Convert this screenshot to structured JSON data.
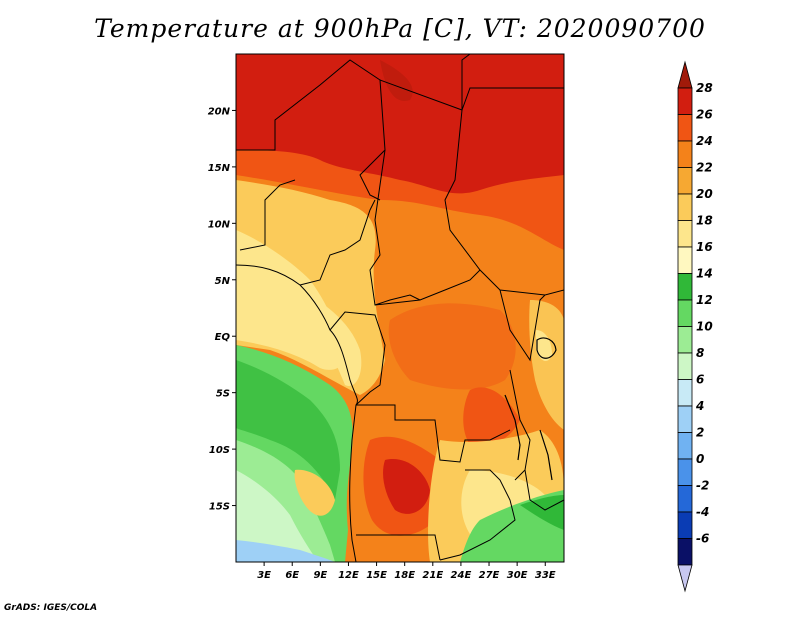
{
  "title": "Temperature at 900hPa [C], VT: 2020090700",
  "credit": "GrADS: IGES/COLA",
  "map": {
    "lon_range": [
      0,
      35
    ],
    "lat_range": [
      -20,
      25
    ],
    "lat_ticks": [
      {
        "value": 20,
        "label": "20N"
      },
      {
        "value": 15,
        "label": "15N"
      },
      {
        "value": 10,
        "label": "10N"
      },
      {
        "value": 5,
        "label": "5N"
      },
      {
        "value": 0,
        "label": "EQ"
      },
      {
        "value": -5,
        "label": "5S"
      },
      {
        "value": -10,
        "label": "10S"
      },
      {
        "value": -15,
        "label": "15S"
      }
    ],
    "lon_ticks": [
      {
        "value": 3,
        "label": "3E"
      },
      {
        "value": 6,
        "label": "6E"
      },
      {
        "value": 9,
        "label": "9E"
      },
      {
        "value": 12,
        "label": "12E"
      },
      {
        "value": 15,
        "label": "15E"
      },
      {
        "value": 18,
        "label": "18E"
      },
      {
        "value": 21,
        "label": "21E"
      },
      {
        "value": 24,
        "label": "24E"
      },
      {
        "value": 27,
        "label": "27E"
      },
      {
        "value": 30,
        "label": "30E"
      },
      {
        "value": 33,
        "label": "33E"
      }
    ]
  },
  "colorbar": {
    "levels": [
      "28",
      "26",
      "24",
      "22",
      "20",
      "18",
      "16",
      "14",
      "12",
      "10",
      "8",
      "6",
      "4",
      "2",
      "0",
      "-2",
      "-4",
      "-6"
    ],
    "colors": [
      "#a01a0a",
      "#d21e10",
      "#f05514",
      "#f4821a",
      "#f6a832",
      "#fbcb5a",
      "#fde68c",
      "#fff8c0",
      "#30b838",
      "#64d862",
      "#9cec94",
      "#cdf7c6",
      "#c8eaf6",
      "#9ed0f6",
      "#70b2f2",
      "#4a92ea",
      "#2468d8",
      "#0a3cb4",
      "#0a1066",
      "#c8c8f0"
    ]
  },
  "zones": [
    {
      "name": "sahel-north-26-28",
      "color": "#d21e10"
    },
    {
      "name": "north-26",
      "color": "#f05514"
    },
    {
      "name": "central-22-24",
      "color": "#f4821a"
    },
    {
      "name": "west-18-20",
      "color": "#fbcb5a"
    },
    {
      "name": "coastal-16-18",
      "color": "#fde68c"
    },
    {
      "name": "atlantic-12-14",
      "color": "#64d862"
    },
    {
      "name": "atlantic-10-12",
      "color": "#9cec94"
    },
    {
      "name": "atlantic-8-10",
      "color": "#cdf7c6"
    },
    {
      "name": "atlantic-6-8",
      "color": "#9ed0f6"
    },
    {
      "name": "angola-hot-24-26",
      "color": "#f05514"
    },
    {
      "name": "zambia-cool-16-20",
      "color": "#fbcb5a"
    },
    {
      "name": "east-green-12-16",
      "color": "#64d862"
    }
  ]
}
